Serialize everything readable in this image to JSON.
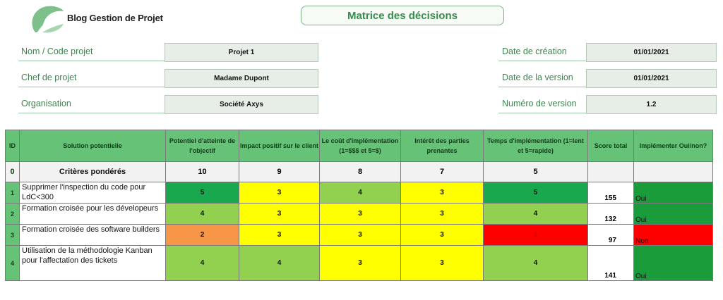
{
  "brand": {
    "name": "Blog Gestion de Projet",
    "logo_icon": "leaf-logo-icon"
  },
  "title": "Matrice des décisions",
  "info_left": [
    {
      "label": "Nom / Code projet",
      "value": "Projet 1"
    },
    {
      "label": "Chef de projet",
      "value": "Madame Dupont"
    },
    {
      "label": "Organisation",
      "value": "Société Axys"
    }
  ],
  "info_right": [
    {
      "label": "Date de création",
      "value": "01/01/2021"
    },
    {
      "label": "Date de la version",
      "value": "01/01/2021"
    },
    {
      "label": "Numéro de version",
      "value": "1.2"
    }
  ],
  "table": {
    "headers": {
      "id": "ID",
      "solution": "Solution potentielle",
      "c1": "Potentiel d'atteinte de l'objectif",
      "c2": "Impact positif sur le client",
      "c3": "Le coût d'implémentation (1=$$$ et 5=$)",
      "c4": "Intérêt des parties prenantes",
      "c5": "Temps d'implémentation (1=lent et 5=rapide)",
      "score": "Score total",
      "implement": "Implémenter Oui/non?"
    },
    "weights": {
      "id": "0",
      "label": "Critères pondérés",
      "c1": "10",
      "c2": "9",
      "c3": "8",
      "c4": "7",
      "c5": "5"
    },
    "rows": [
      {
        "id": "1",
        "solution": "Supprimer l'inspection du code pour LdC<300",
        "c1": "5",
        "c2": "3",
        "c3": "4",
        "c4": "3",
        "c5": "5",
        "score": "155",
        "implement": "Oui"
      },
      {
        "id": "2",
        "solution": "Formation croisée pour les dévelopeurs",
        "c1": "4",
        "c2": "3",
        "c3": "3",
        "c4": "3",
        "c5": "4",
        "score": "132",
        "implement": "Oui"
      },
      {
        "id": "3",
        "solution": "Formation croisée des software builders",
        "c1": "2",
        "c2": "3",
        "c3": "3",
        "c4": "3",
        "c5": "1",
        "score": "97",
        "implement": "Non"
      },
      {
        "id": "4",
        "solution": "Utilisation de la méthodologie Kanban pour l'affectation des tickets",
        "c1": "4",
        "c2": "4",
        "c3": "3",
        "c4": "3",
        "c5": "4",
        "score": "141",
        "implement": "Oui"
      }
    ]
  },
  "colors": {
    "score_5": "#1aa84f",
    "score_4": "#92d050",
    "score_3": "#ffff00",
    "score_2": "#f79646",
    "score_1": "#ff0000",
    "oui": "#1a9c3a",
    "non": "#ff0000",
    "header": "#66c277"
  }
}
